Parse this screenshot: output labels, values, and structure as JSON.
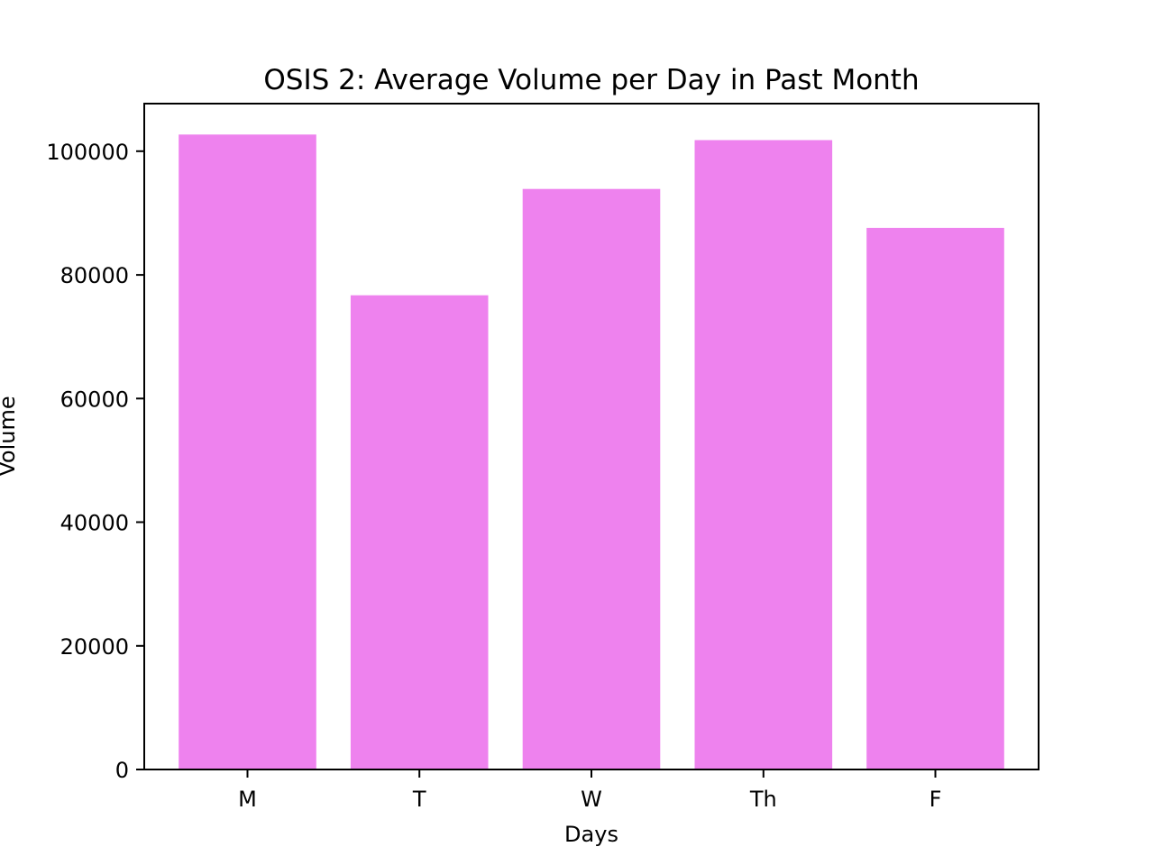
{
  "chart_data": {
    "type": "bar",
    "title": "OSIS 2: Average Volume per Day in Past Month",
    "xlabel": "Days",
    "ylabel": "Volume",
    "categories": [
      "M",
      "T",
      "W",
      "Th",
      "F"
    ],
    "values": [
      102700,
      76700,
      93900,
      101800,
      87600
    ],
    "ylim": [
      0,
      107700
    ],
    "yticks": [
      0,
      20000,
      40000,
      60000,
      80000,
      100000
    ],
    "ytick_labels": [
      "0",
      "20000",
      "40000",
      "60000",
      "80000",
      "100000"
    ],
    "bar_color": "#ee82ee",
    "grid": false,
    "legend": "none"
  }
}
